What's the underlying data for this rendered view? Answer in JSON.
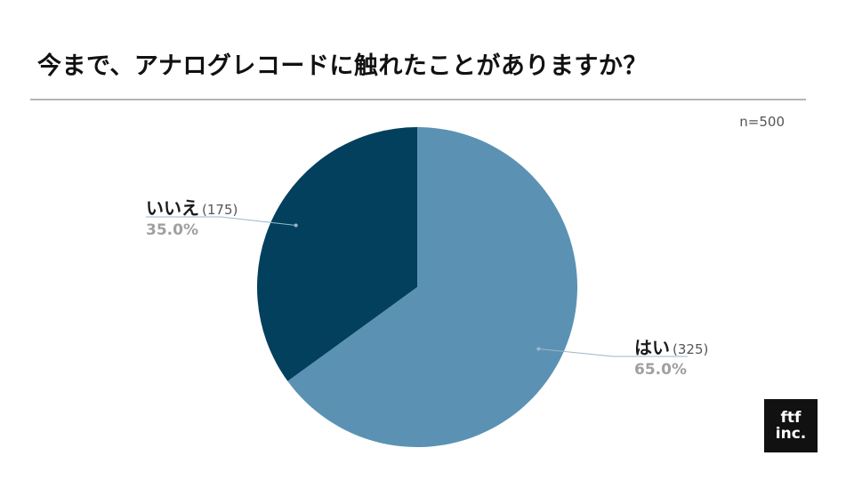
{
  "title": "今まで、アナログレコードに触れたことがありますか？",
  "sample_size": "n=500",
  "logo": {
    "line1": "ftf",
    "line2": "inc."
  },
  "colors": {
    "yes": "#5b92b4",
    "no": "#02405e",
    "leader": "#9ab7cb"
  },
  "chart_data": {
    "type": "pie",
    "title": "今まで、アナログレコードに触れたことがありますか？",
    "total": 500,
    "slices": [
      {
        "label": "はい",
        "count": "(325)",
        "value": 325,
        "percent": "65.0%",
        "color": "#5b92b4"
      },
      {
        "label": "いいえ",
        "count": "(175)",
        "value": 175,
        "percent": "35.0%",
        "color": "#02405e"
      }
    ]
  }
}
